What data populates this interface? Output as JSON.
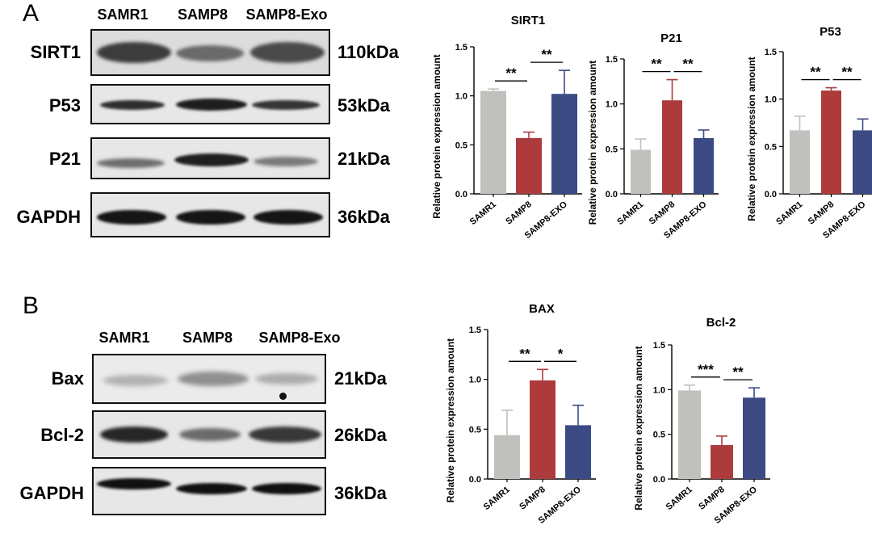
{
  "panel_a": {
    "letter": "A",
    "lanes": [
      "SAMR1",
      "SAMP8",
      "SAMP8-Exo"
    ],
    "blots": [
      {
        "label": "SIRT1",
        "kda": "110kDa"
      },
      {
        "label": "P53",
        "kda": "53kDa"
      },
      {
        "label": "P21",
        "kda": "21kDa"
      },
      {
        "label": "GAPDH",
        "kda": "36kDa"
      }
    ]
  },
  "panel_b": {
    "letter": "B",
    "lanes": [
      "SAMR1",
      "SAMP8",
      "SAMP8-Exo"
    ],
    "blots": [
      {
        "label": "Bax",
        "kda": "21kDa"
      },
      {
        "label": "Bcl-2",
        "kda": "26kDa"
      },
      {
        "label": "GAPDH",
        "kda": "36kDa"
      }
    ]
  },
  "colors": {
    "SAMR1": "#c0c0bc",
    "SAMP8": "#ad3b3b",
    "SAMP8-EXO": "#3c4a84"
  },
  "chart_data": [
    {
      "type": "bar",
      "title": "SIRT1",
      "categories": [
        "SAMR1",
        "SAMP8",
        "SAMP8-EXO"
      ],
      "values": [
        1.05,
        0.57,
        1.02
      ],
      "errors": [
        0.02,
        0.06,
        0.24
      ],
      "ylabel": "Relative protein expression amount",
      "ylim": [
        0,
        1.5
      ],
      "yticks": [
        "0.0",
        "0.5",
        "1.0",
        "1.5"
      ],
      "significance": [
        {
          "pair": [
            0,
            1
          ],
          "label": "**"
        },
        {
          "pair": [
            1,
            2
          ],
          "label": "**"
        }
      ]
    },
    {
      "type": "bar",
      "title": "P21",
      "categories": [
        "SAMR1",
        "SAMP8",
        "SAMP8-EXO"
      ],
      "values": [
        0.49,
        1.04,
        0.62
      ],
      "errors": [
        0.12,
        0.23,
        0.09
      ],
      "ylabel": "Relative protein expression amount",
      "ylim": [
        0,
        1.5
      ],
      "yticks": [
        "0.0",
        "0.5",
        "1.0",
        "1.5"
      ],
      "significance": [
        {
          "pair": [
            0,
            1
          ],
          "label": "**"
        },
        {
          "pair": [
            1,
            2
          ],
          "label": "**"
        }
      ]
    },
    {
      "type": "bar",
      "title": "P53",
      "categories": [
        "SAMR1",
        "SAMP8",
        "SAMP8-EXO"
      ],
      "values": [
        0.67,
        1.09,
        0.67
      ],
      "errors": [
        0.15,
        0.03,
        0.12
      ],
      "ylabel": "Relative protein expression amount",
      "ylim": [
        0,
        1.5
      ],
      "yticks": [
        "0.0",
        "0.5",
        "1.0",
        "1.5"
      ],
      "significance": [
        {
          "pair": [
            0,
            1
          ],
          "label": "**"
        },
        {
          "pair": [
            1,
            2
          ],
          "label": "**"
        }
      ]
    },
    {
      "type": "bar",
      "title": "BAX",
      "categories": [
        "SAMR1",
        "SAMP8",
        "SAMP8-EXO"
      ],
      "values": [
        0.44,
        0.99,
        0.54
      ],
      "errors": [
        0.25,
        0.11,
        0.2
      ],
      "ylabel": "Relative protein expression amount",
      "ylim": [
        0,
        1.5
      ],
      "yticks": [
        "0.0",
        "0.5",
        "1.0",
        "1.5"
      ],
      "significance": [
        {
          "pair": [
            0,
            1
          ],
          "label": "**"
        },
        {
          "pair": [
            1,
            2
          ],
          "label": "*"
        }
      ]
    },
    {
      "type": "bar",
      "title": "Bcl-2",
      "categories": [
        "SAMR1",
        "SAMP8",
        "SAMP8-EXO"
      ],
      "values": [
        0.99,
        0.38,
        0.91
      ],
      "errors": [
        0.06,
        0.1,
        0.11
      ],
      "ylabel": "Relative protein expression amount",
      "ylim": [
        0,
        1.5
      ],
      "yticks": [
        "0.0",
        "0.5",
        "1.0",
        "1.5"
      ],
      "significance": [
        {
          "pair": [
            0,
            1
          ],
          "label": "***"
        },
        {
          "pair": [
            1,
            2
          ],
          "label": "**"
        }
      ]
    }
  ]
}
